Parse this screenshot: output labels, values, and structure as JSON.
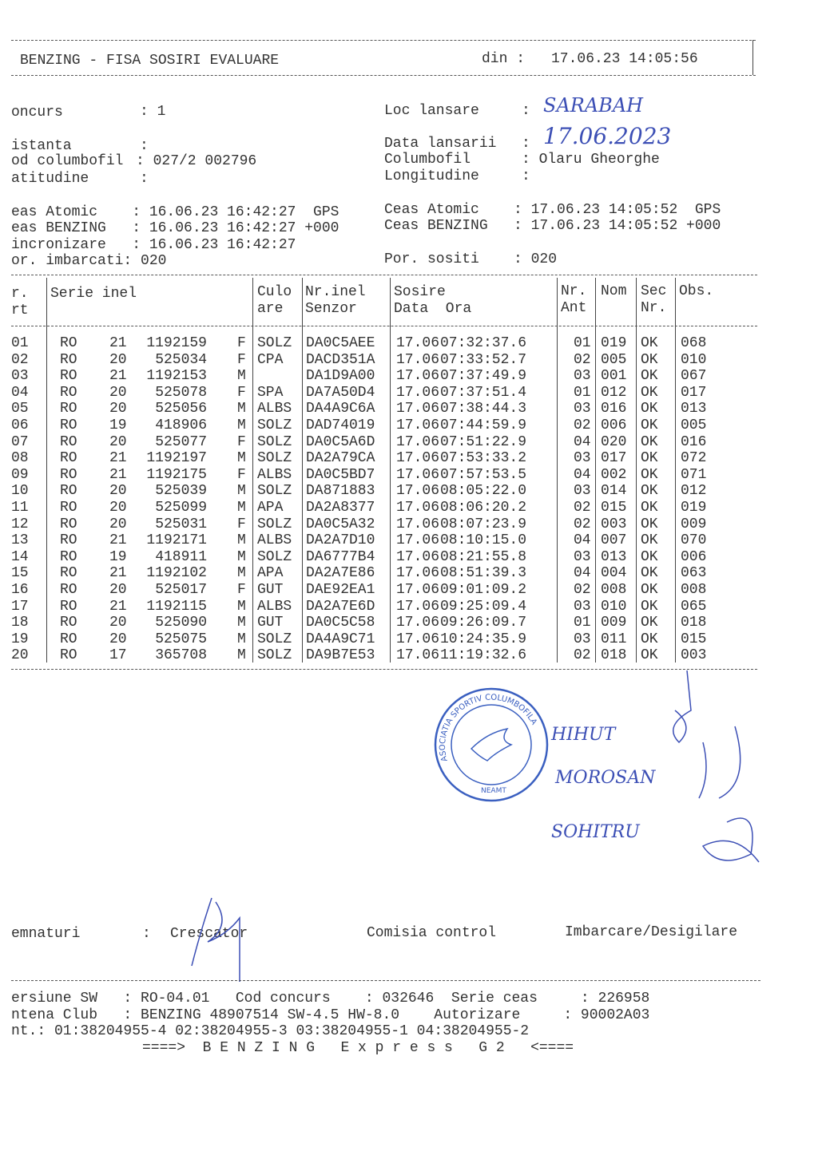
{
  "header": {
    "title": "BENZING - FISA SOSIRI EVALUARE",
    "din_label": "din :",
    "din_value": "17.06.23 14:05:56"
  },
  "info": {
    "concurs_label": "oncurs",
    "concurs_value": ": 1",
    "distanta_label": "istanta",
    "distanta_value": ":",
    "cod_label": "od columbofil",
    "cod_value": ": 027/2 002796",
    "latitudine_label": "atitudine",
    "latitudine_value": ":",
    "loc_label": "Loc lansare",
    "loc_colon": ":",
    "loc_value": "SARABAH",
    "data_label": "Data lansarii",
    "data_colon": ":",
    "data_value": "17.06.2023",
    "columbofil_label": "Columbofil",
    "columbofil_value": ": Olaru Gheorghe",
    "longitudine_label": "Longitudine",
    "longitudine_value": ":",
    "ceas_atomic_start": "eas Atomic    : 16.06.23 16:42:27  GPS",
    "ceas_benzing_start": "eas BENZING   : 16.06.23 16:42:27 +000",
    "sincronizare": "incronizare   : 16.06.23 16:42:27",
    "imbarcati": "or. imbarcati: 020",
    "ceas_atomic_end": "Ceas Atomic    : 17.06.23 14:05:52  GPS",
    "ceas_benzing_end": "Ceas BENZING   : 17.06.23 14:05:52 +000",
    "sositi": "Por. sositi    : 020"
  },
  "table": {
    "headers": {
      "nr1": "r.",
      "nr2": "rt",
      "serie": "Serie inel",
      "cul1": "Culo",
      "cul2": "are",
      "senz1": "Nr.inel",
      "senz2": "Senzor",
      "sos1": "Sosire",
      "sos2": "Data  Ora",
      "ant1": "Nr.",
      "ant2": "Ant",
      "nom": "Nom",
      "sec1": "Sec",
      "sec2": "Nr.",
      "obs": "Obs."
    },
    "rows": [
      [
        "01",
        "RO",
        "21",
        "1192159",
        "F",
        "SOLZ",
        "DA0C5AEE",
        "17.06",
        "07:32:37.6",
        "01",
        "019",
        "OK",
        "068"
      ],
      [
        "02",
        "RO",
        "20",
        "525034",
        "F",
        "CPA",
        "DACD351A",
        "17.06",
        "07:33:52.7",
        "02",
        "005",
        "OK",
        "010"
      ],
      [
        "03",
        "RO",
        "21",
        "1192153",
        "M",
        "",
        "DA1D9A00",
        "17.06",
        "07:37:49.9",
        "03",
        "001",
        "OK",
        "067"
      ],
      [
        "04",
        "RO",
        "20",
        "525078",
        "F",
        "SPA",
        "DA7A50D4",
        "17.06",
        "07:37:51.4",
        "01",
        "012",
        "OK",
        "017"
      ],
      [
        "05",
        "RO",
        "20",
        "525056",
        "M",
        "ALBS",
        "DA4A9C6A",
        "17.06",
        "07:38:44.3",
        "03",
        "016",
        "OK",
        "013"
      ],
      [
        "06",
        "RO",
        "19",
        "418906",
        "M",
        "SOLZ",
        "DAD74019",
        "17.06",
        "07:44:59.9",
        "02",
        "006",
        "OK",
        "005"
      ],
      [
        "07",
        "RO",
        "20",
        "525077",
        "F",
        "SOLZ",
        "DA0C5A6D",
        "17.06",
        "07:51:22.9",
        "04",
        "020",
        "OK",
        "016"
      ],
      [
        "08",
        "RO",
        "21",
        "1192197",
        "M",
        "SOLZ",
        "DA2A79CA",
        "17.06",
        "07:53:33.2",
        "03",
        "017",
        "OK",
        "072"
      ],
      [
        "09",
        "RO",
        "21",
        "1192175",
        "F",
        "ALBS",
        "DA0C5BD7",
        "17.06",
        "07:57:53.5",
        "04",
        "002",
        "OK",
        "071"
      ],
      [
        "10",
        "RO",
        "20",
        "525039",
        "M",
        "SOLZ",
        "DA871883",
        "17.06",
        "08:05:22.0",
        "03",
        "014",
        "OK",
        "012"
      ],
      [
        "11",
        "RO",
        "20",
        "525099",
        "M",
        "APA",
        "DA2A8377",
        "17.06",
        "08:06:20.2",
        "02",
        "015",
        "OK",
        "019"
      ],
      [
        "12",
        "RO",
        "20",
        "525031",
        "F",
        "SOLZ",
        "DA0C5A32",
        "17.06",
        "08:07:23.9",
        "02",
        "003",
        "OK",
        "009"
      ],
      [
        "13",
        "RO",
        "21",
        "1192171",
        "M",
        "ALBS",
        "DA2A7D10",
        "17.06",
        "08:10:15.0",
        "04",
        "007",
        "OK",
        "070"
      ],
      [
        "14",
        "RO",
        "19",
        "418911",
        "M",
        "SOLZ",
        "DA6777B4",
        "17.06",
        "08:21:55.8",
        "03",
        "013",
        "OK",
        "006"
      ],
      [
        "15",
        "RO",
        "21",
        "1192102",
        "M",
        "APA",
        "DA2A7E86",
        "17.06",
        "08:51:39.3",
        "04",
        "004",
        "OK",
        "063"
      ],
      [
        "16",
        "RO",
        "20",
        "525017",
        "F",
        "GUT",
        "DAE92EA1",
        "17.06",
        "09:01:09.2",
        "02",
        "008",
        "OK",
        "008"
      ],
      [
        "17",
        "RO",
        "21",
        "1192115",
        "M",
        "ALBS",
        "DA2A7E6D",
        "17.06",
        "09:25:09.4",
        "03",
        "010",
        "OK",
        "065"
      ],
      [
        "18",
        "RO",
        "20",
        "525090",
        "M",
        "GUT",
        "DA0C5C58",
        "17.06",
        "09:26:09.7",
        "01",
        "009",
        "OK",
        "018"
      ],
      [
        "19",
        "RO",
        "20",
        "525075",
        "M",
        "SOLZ",
        "DA4A9C71",
        "17.06",
        "10:24:35.9",
        "03",
        "011",
        "OK",
        "015"
      ],
      [
        "20",
        "RO",
        "17",
        "365708",
        "M",
        "SOLZ",
        "DA9B7E53",
        "17.06",
        "11:19:32.6",
        "02",
        "018",
        "OK",
        "003"
      ]
    ]
  },
  "stamp": {
    "text": "ASOCIATIA SPORTIV COLUMBOFILA",
    "city": "NEAMT"
  },
  "handwritten": {
    "sig1": "HIHUT",
    "sig2": "MOROSAN",
    "sig3": "SOHITRU"
  },
  "signatures": {
    "label": "emnaturi",
    "colon": ":",
    "crescator": "Crescator",
    "comisia": "Comisia control",
    "imbarcare": "Imbarcare/Desigilare"
  },
  "footer": {
    "line1": "ersiune SW   : RO-04.01   Cod concurs    : 032646  Serie ceas     : 226958",
    "line2": "ntena Club   : BENZING 48907514 SW-4.5 HW-8.0    Autorizare     : 90002A03",
    "line3": "nt.: 01:38204955-4 02:38204955-3 03:38204955-1 04:38204955-2",
    "line4": "====>  B E N Z I N G   E x p r e s s   G 2   <===="
  },
  "colors": {
    "ink": "#333333",
    "pen": "#3c4fb5",
    "stamp": "#3a5fc0"
  }
}
